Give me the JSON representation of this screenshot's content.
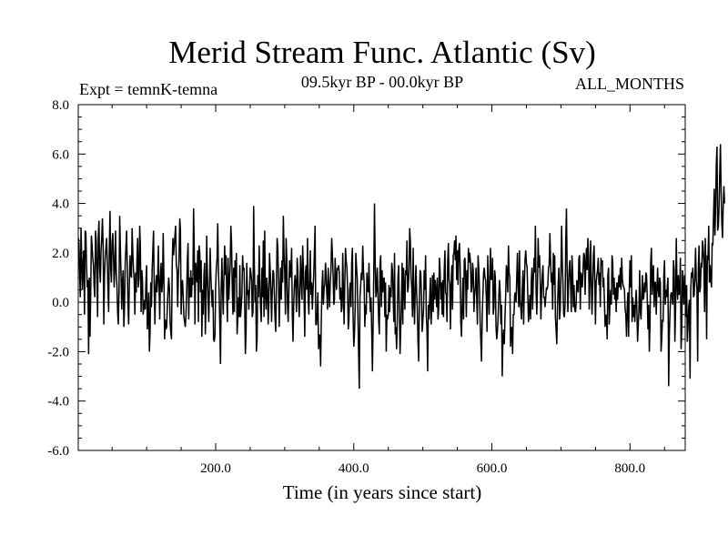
{
  "chart_data": {
    "type": "line",
    "title": "Merid Stream Func. Atlantic (Sv)",
    "subtitle": "09.5kyr BP - 00.0kyr BP",
    "experiment": "Expt = temnK-temna",
    "season": "ALL_MONTHS",
    "xlabel": "Time (in years since start)",
    "ylabel": "",
    "xlim": [
      1,
      880
    ],
    "ylim": [
      -6.0,
      8.0
    ],
    "x_ticks": [
      200,
      400,
      600,
      800
    ],
    "x_tick_labels": [
      "200.0",
      "400.0",
      "600.0",
      "800.0"
    ],
    "y_ticks": [
      -6,
      -4,
      -2,
      0,
      2,
      4,
      6,
      8
    ],
    "y_tick_labels": [
      "-6.0",
      "-4.0",
      "-2.0",
      "0.0",
      "2.0",
      "4.0",
      "6.0",
      "8.0"
    ],
    "zero_line": true,
    "grid": false,
    "line_color": "#000000",
    "series": [
      {
        "x_start": 1,
        "x_step": 1,
        "values": [
          2.6,
          2.4,
          1.2,
          0.2,
          3.0,
          1.8,
          0.5,
          1.6,
          2.1,
          -0.5,
          2.9,
          2.8,
          1.5,
          0.6,
          0.9,
          -2.1,
          1.0,
          -1.4,
          0.3,
          2.7,
          2.3,
          1.8,
          1.5,
          0.6,
          0.2,
          2.9,
          2.5,
          1.1,
          -0.6,
          2.7,
          3.3,
          1.4,
          0.8,
          2.1,
          2.6,
          3.4,
          2.3,
          -0.9,
          1.1,
          1.8,
          2.2,
          2.6,
          1.7,
          0.6,
          -0.4,
          2.2,
          3.7,
          1.4,
          0.8,
          2.4,
          2.8,
          1.9,
          0.6,
          1.5,
          2.9,
          1.2,
          0.7,
          -0.4,
          -0.9,
          0.4,
          3.5,
          2.2,
          1.1,
          -0.3,
          0.8,
          1.3,
          -1.0,
          -0.2,
          1.6,
          2.2,
          2.9,
          1.4,
          -0.1,
          -0.9,
          0.8,
          1.9,
          1.1,
          1.0,
          3.0,
          2.0,
          1.3,
          0.9,
          -0.5,
          1.2,
          0.4,
          1.7,
          2.6,
          0.6,
          1.0,
          3.1,
          2.2,
          -0.4,
          1.3,
          0.9,
          -0.5,
          -0.2,
          0.1,
          -0.3,
          0.8,
          1.5,
          -1.1,
          -0.7,
          0.4,
          -2.0,
          -1.2,
          0.8,
          -0.2,
          1.3,
          2.1,
          2.9,
          0.5,
          -0.9,
          0.6,
          1.1,
          0.4,
          0.9,
          2.3,
          0.7,
          -0.7,
          1.0,
          1.6,
          0.4,
          0.8,
          2.8,
          1.1,
          -1.5,
          -0.7,
          -1.1,
          -1.0,
          -0.2,
          0.5,
          1.0,
          0.6,
          -0.8,
          -1.2,
          -1.5,
          1.4,
          2.6,
          1.9,
          2.3,
          2.7,
          3.1,
          1.5,
          1.3,
          -0.2,
          1.1,
          1.8,
          3.4,
          2.9,
          -0.5,
          0.7,
          0.9,
          0.2,
          -0.6,
          -0.8,
          -1.0,
          -0.5,
          0.4,
          1.7,
          2.4,
          -0.7,
          1.0,
          0.2,
          1.3,
          0.2,
          1.0,
          0.7,
          3.8,
          2.2,
          -0.9,
          1.6,
          1.2,
          0.8,
          2.1,
          -0.8,
          2.3,
          2.0,
          0.4,
          1.7,
          -1.4,
          0.5,
          -0.5,
          1.1,
          1.6,
          -1.3,
          -0.1,
          2.7,
          1.1,
          0.2,
          -0.8,
          0.6,
          2.2,
          1.1,
          0.4,
          -0.2,
          0.5,
          -1.5,
          -1.6,
          -1.3,
          0.7,
          1.4,
          1.8,
          3.2,
          1.3,
          0.4,
          -1.0,
          -2.5,
          0.5,
          1.8,
          0.5,
          -0.5,
          1.1,
          2.3,
          1.1,
          1.9,
          0.3,
          -0.8,
          1.8,
          0.1,
          0.8,
          1.5,
          3.1,
          2.4,
          0.6,
          -0.5,
          1.4,
          -0.4,
          1.7,
          1.0,
          2.0,
          -1.3,
          -0.7,
          0.2,
          -0.6,
          1.5,
          -0.6,
          -0.2,
          0.3,
          1.9,
          1.3,
          1.4,
          0.0,
          -2.1,
          -1.2,
          1.6,
          0.3,
          0.5,
          -0.3,
          0.5,
          1.4,
          1.2,
          0.9,
          -0.6,
          -0.4,
          3.9,
          1.5,
          0.0,
          0.7,
          -2.0,
          -1.5,
          1.1,
          0.2,
          2.3,
          0.9,
          -0.2,
          -0.8,
          1.4,
          0.2,
          2.5,
          -0.6,
          2.9,
          0.3,
          -0.3,
          1.0,
          0.6,
          -0.9,
          -0.1,
          2.0,
          1.3,
          0.4,
          -0.8,
          0.5,
          1.3,
          1.2,
          0.3,
          -0.7,
          -1.2,
          0.8,
          2.6,
          2.2,
          0.8,
          -1.0,
          0.3,
          1.4,
          0.1,
          1.7,
          0.8,
          3.5,
          1.9,
          1.2,
          -0.5,
          2.6,
          1.7,
          -0.1,
          -0.8,
          0.4,
          1.7,
          1.0,
          1.3,
          2.2,
          -0.5,
          -1.6,
          -0.1,
          0.7,
          1.1,
          0.7,
          -0.4,
          1.8,
          1.3,
          0.2,
          -0.6,
          0.5,
          1.9,
          0.9,
          0.1,
          2.3,
          1.4,
          0.3,
          -1.4,
          1.2,
          1.5,
          0.5,
          2.6,
          0.1,
          -0.5,
          1.0,
          2.1,
          0.3,
          0.8,
          -0.3,
          0.5,
          1.1,
          2.1,
          3.1,
          -0.9,
          -0.9,
          -0.4,
          0.4,
          -1.9,
          -1.3,
          -1.4,
          -2.6,
          -0.7,
          0.6,
          1.3,
          -0.1,
          0.6,
          0.7,
          1.6,
          1.1,
          0.3,
          -0.3,
          1.4,
          0.5,
          -0.2,
          0.8,
          1.3,
          2.6,
          2.0,
          1.2,
          -0.1,
          0.1,
          1.8,
          1.0,
          0.5,
          1.4,
          1.3,
          1.5,
          1.2,
          0.1,
          0.6,
          -0.4,
          -0.2,
          2.0,
          0.4,
          -0.9,
          0.8,
          2.2,
          1.7,
          1.4,
          0.6,
          -1.1,
          -0.7,
          0.5,
          0.8,
          -0.2,
          1.6,
          2.2,
          -0.6,
          -1.8,
          -1.3,
          -0.2,
          2.0,
          1.4,
          1.0,
          -0.5,
          -2.1,
          -3.5,
          0.2,
          0.7,
          1.2,
          0.9,
          2.3,
          1.3,
          0.8,
          -1.0,
          -0.1,
          -0.5,
          1.2,
          0.6,
          0.4,
          1.6,
          0.3,
          -0.4,
          0.2,
          -1.2,
          -2.8,
          -0.9,
          1.2,
          4.0,
          1.7,
          0.2,
          0.5,
          1.4,
          0.3,
          -0.7,
          -1.3,
          1.5,
          1.9,
          -0.2,
          1.3,
          0.4,
          0.9,
          1.0,
          -0.6,
          0.8,
          -2.0,
          -0.5,
          -0.7,
          -0.5,
          0.7,
          -0.4,
          0.6,
          0.2,
          1.6,
          1.3,
          0.3,
          -0.8,
          2.0,
          -1.3,
          -1.0,
          -1.9,
          -0.7,
          1.0,
          1.5,
          -0.4,
          -2.1,
          -1.1,
          0.0,
          1.6,
          -0.9,
          1.4,
          0.6,
          -0.3,
          1.3,
          1.1,
          2.5,
          0.4,
          0.6,
          1.3,
          3.0,
          2.4,
          1.0,
          0.6,
          -0.6,
          2.2,
          0.1,
          -0.9,
          0.6,
          1.5,
          0.4,
          -0.3,
          -1.6,
          -2.4,
          0.1,
          1.3,
          1.2,
          0.3,
          -1.2,
          -0.8,
          -0.3,
          1.3,
          0.5,
          1.9,
          -0.5,
          -1.1,
          -2.8,
          -0.1,
          -0.7,
          0.2,
          1.0,
          -0.9,
          -0.2,
          1.1,
          -0.4,
          1.2,
          0.1,
          0.9,
          0.5,
          -0.2,
          1.0,
          -0.7,
          -0.2,
          1.8,
          1.3,
          0.1,
          0.8,
          -0.5,
          0.9,
          -0.6,
          1.3,
          2.1,
          0.4,
          0.3,
          -0.8,
          1.6,
          2.4,
          0.9,
          0.7,
          -1.1,
          0.7,
          1.5,
          -0.3,
          1.9,
          2.0,
          2.5,
          1.7,
          2.7,
          0.9,
          2.1,
          0.7,
          2.1,
          2.4,
          1.5,
          -0.8,
          -1.4,
          -0.1,
          1.0,
          -0.7,
          1.7,
          1.8,
          0.9,
          -0.6,
          1.3,
          0.5,
          2.2,
          1.6,
          2.0,
          1.6,
          0.4,
          0.6,
          1.6,
          1.3,
          -0.4,
          0.3,
          0.6,
          1.4,
          0.2,
          -0.9,
          1.9,
          1.4,
          0.6,
          -0.8,
          -1.6,
          -2.4,
          -0.5,
          0.3,
          1.2,
          1.4,
          1.0,
          0.9,
          0.1,
          -1.2,
          1.9,
          0.5,
          -0.5,
          1.0,
          2.2,
          0.9,
          1.0,
          1.8,
          -0.5,
          -0.2,
          1.3,
          1.0,
          -1.0,
          -1.5,
          -1.2,
          -0.6,
          0.2,
          0.9,
          0.4,
          -0.9,
          -0.1,
          -3.0,
          -1.5,
          -1.1,
          -1.7,
          -0.6,
          0.3,
          1.5,
          1.2,
          0.4,
          2.3,
          1.2,
          1.0,
          -1.8,
          -1.2,
          -1.0,
          -2.1,
          -0.5,
          -0.5,
          0.3,
          0.4,
          0.0,
          1.0,
          2.0,
          0.6,
          -0.2,
          2.1,
          0.1,
          -0.3,
          -0.7,
          0.5,
          1.3,
          -0.9,
          0.7,
          1.7,
          2.1,
          1.6,
          1.4,
          0.3,
          -0.8,
          -0.3,
          0.3,
          -0.7,
          0.8,
          1.4,
          -0.3,
          0.9,
          1.8,
          1.2,
          3.1,
          0.5,
          -0.5,
          0.6,
          2.6,
          1.4,
          1.9,
          0.9,
          -0.7,
          0.4,
          1.1,
          1.5,
          0.2,
          0.2,
          -0.2,
          0.2,
          0.6,
          0.5,
          0.7,
          1.4,
          1.5,
          2.8,
          1.7,
          0.8,
          1.2,
          -0.3,
          2.0,
          0.7,
          1.9,
          -0.6,
          -1.1,
          -1.7,
          -0.2,
          0.7,
          1.4,
          -0.7,
          -0.3,
          1.2,
          3.1,
          1.6,
          0.7,
          -0.5,
          -0.6,
          -0.1,
          2.5,
          3.8,
          1.3,
          -0.4,
          0.7,
          1.4,
          1.7,
          0.7,
          -0.4,
          1.9,
          1.2,
          -0.2,
          0.7,
          -0.3,
          -0.4,
          -0.1,
          0.9,
          0.7,
          0.4,
          1.8,
          1.9,
          -0.3,
          1.2,
          1.0,
          0.6,
          1.3,
          2.0,
          1.9,
          0.3,
          1.5,
          2.2,
          1.3,
          2.6,
          1.9,
          -0.3,
          1.0,
          2.5,
          0.8,
          -0.5,
          0.6,
          1.9,
          2.3,
          0.9,
          -0.9,
          0.8,
          1.1,
          1.3,
          1.8,
          0.7,
          1.2,
          -0.2,
          1.8,
          1.5,
          1.7,
          0.6,
          1.0,
          0.0,
          -1.0,
          -0.5,
          -0.7,
          -1.5,
          1.1,
          1.4,
          -0.9,
          0.0,
          0.5,
          -0.1,
          1.9,
          1.6,
          0.3,
          1.0,
          0.1,
          0.6,
          -0.4,
          0.8,
          0.1,
          0.7,
          1.1,
          0.6,
          1.4,
          0.5,
          1.8,
          0.9,
          0.7,
          0.6,
          0.5,
          -0.3,
          -0.5,
          -1.4,
          -0.2,
          0.4,
          -1.4,
          0.6,
          1.7,
          0.6,
          1.9,
          -0.8,
          0.2,
          -0.6,
          -0.1,
          -0.8,
          0.0,
          0.5,
          -0.3,
          -1.6,
          -0.9,
          -0.3,
          1.3,
          -0.4,
          -0.7,
          0.3,
          1.1,
          0.1,
          0.2,
          0.8,
          0.4,
          1.2,
          1.1,
          0.2,
          -1.1,
          -0.1,
          -2.0,
          -0.9,
          1.6,
          2.2,
          0.3,
          1.1,
          1.5,
          -0.2,
          0.8,
          0.8,
          -0.5,
          0.5,
          1.4,
          0.5,
          0.2,
          1.0,
          0.8,
          -2.0,
          -1.5,
          -0.7,
          -0.8,
          1.1,
          1.7,
          -0.1,
          0.5,
          0.2,
          0.6,
          1.0,
          -3.4,
          -1.3,
          -0.4,
          0.3,
          0.4,
          0.2,
          -0.1,
          1.7,
          1.3,
          -1.6,
          -0.4,
          2.6,
          0.8,
          0.1,
          1.1,
          0.3,
          0.4,
          1.8,
          -1.9,
          -1.1,
          1.3,
          0.7,
          -0.1,
          1.1,
          0.6,
          -0.6,
          0.7,
          -1.6,
          -1.0,
          -0.2,
          0.1,
          -3.1,
          0.5,
          1.2,
          1.0,
          1.4,
          0.2,
          0.3,
          1.1,
          2.2,
          0.9,
          0.5,
          -2.4,
          1.4,
          2.3,
          0.4,
          0.6,
          1.6,
          1.4,
          2.5,
          2.2,
          1.6,
          -0.4,
          2.6,
          1.4,
          -1.5,
          1.9,
          1.7,
          3.1,
          0.8,
          1.5,
          0.9,
          0.6,
          2.4,
          2.3,
          3.5,
          4.6,
          2.7,
          3.8,
          5.6,
          6.3,
          2.9,
          3.1,
          3.9,
          5.3,
          6.4,
          4.4,
          3.2,
          2.6,
          3.9,
          4.7,
          4.0
        ]
      }
    ]
  }
}
